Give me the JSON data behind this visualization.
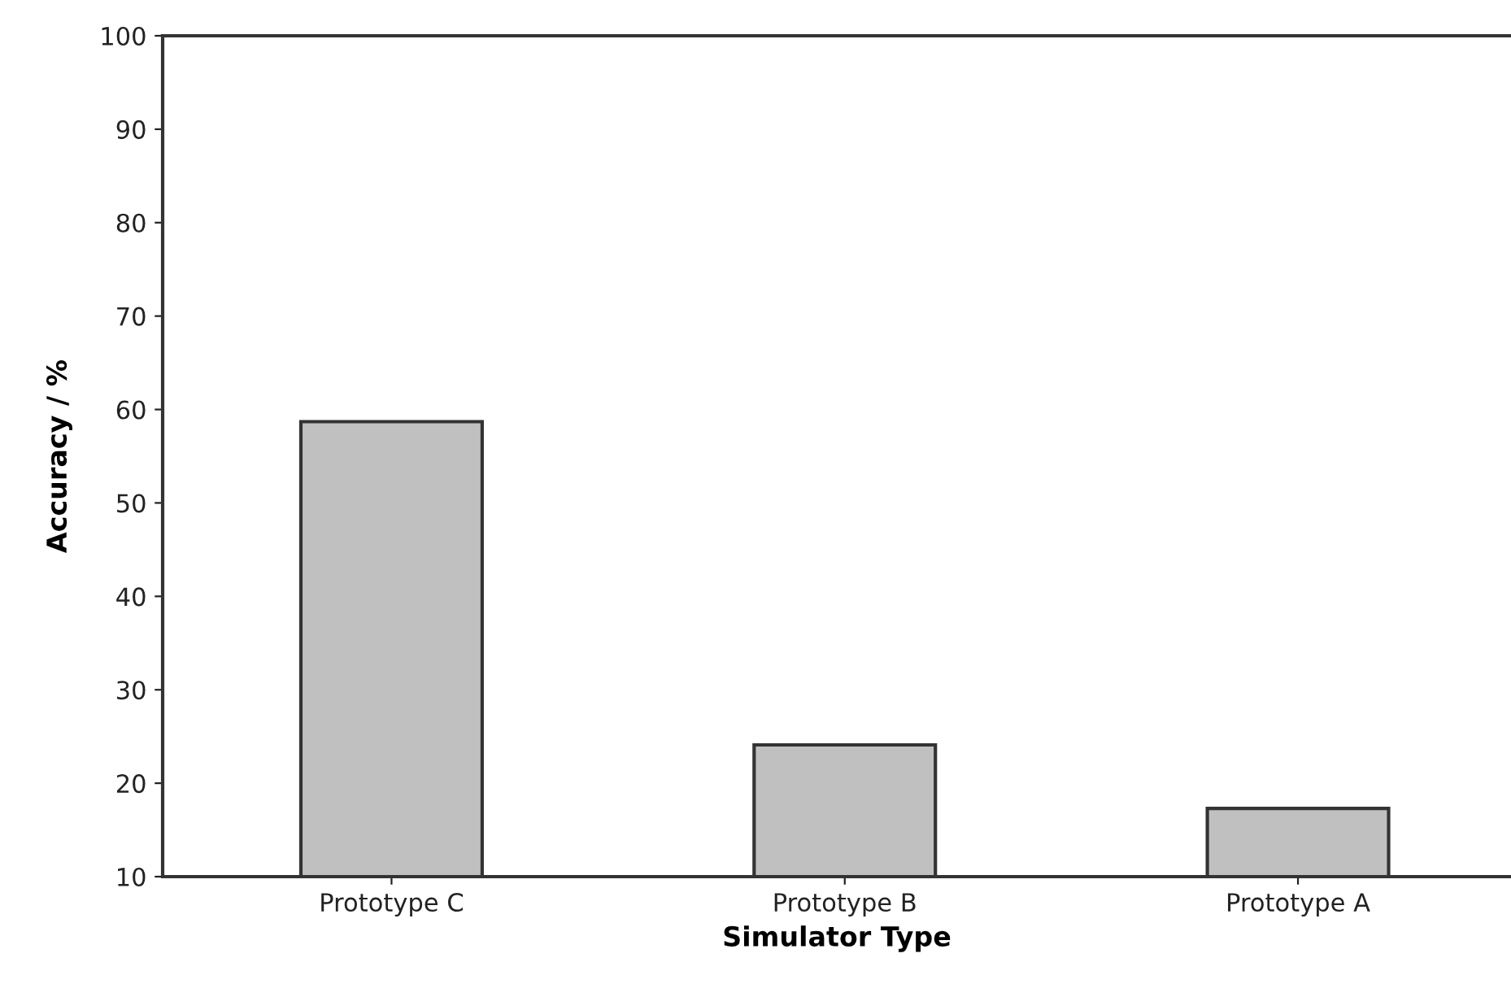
{
  "chart_data": {
    "type": "bar",
    "xlabel": "Simulator Type",
    "ylabel": "Accuracy / %",
    "categories": [
      "Prototype C",
      "Prototype B",
      "Prototype A"
    ],
    "values": [
      58.7,
      24.1,
      17.3
    ],
    "color": "#c0c0c0",
    "ylim": [
      10,
      100
    ],
    "yticks": [
      10,
      20,
      30,
      40,
      50,
      60,
      70,
      80,
      90,
      100
    ],
    "grid": false
  }
}
